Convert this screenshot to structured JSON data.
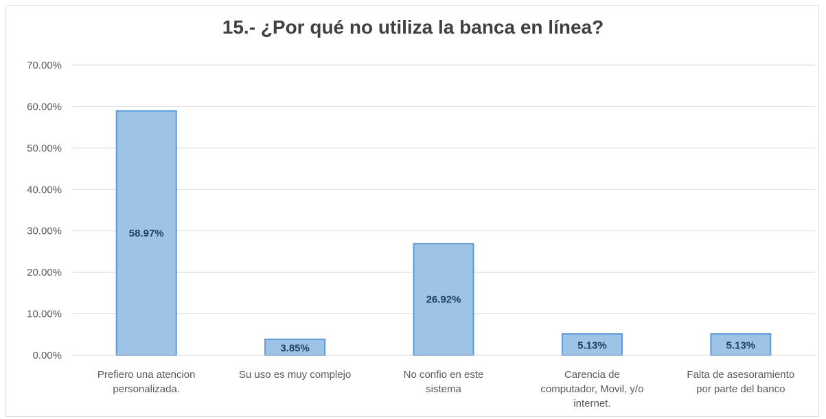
{
  "chart_data": {
    "type": "bar",
    "title": "15.- ¿Por qué no utiliza la banca en línea?",
    "xlabel": "",
    "ylabel": "",
    "categories": [
      [
        "Prefiero una atencion",
        "personalizada."
      ],
      [
        "Su uso es muy complejo"
      ],
      [
        "No confio en este",
        "sistema"
      ],
      [
        "Carencia de",
        "computador, Movil, y/o",
        "internet."
      ],
      [
        "Falta de asesoramiento",
        "por parte del banco"
      ]
    ],
    "values": [
      58.97,
      3.85,
      26.92,
      5.13,
      5.13
    ],
    "data_labels": [
      "58.97%",
      "3.85%",
      "26.92%",
      "5.13%",
      "5.13%"
    ],
    "ylim": [
      0,
      70
    ],
    "yticks": [
      0,
      10,
      20,
      30,
      40,
      50,
      60,
      70
    ],
    "ytick_labels": [
      "0.00%",
      "10.00%",
      "20.00%",
      "30.00%",
      "40.00%",
      "50.00%",
      "60.00%",
      "70.00%"
    ],
    "grid": true,
    "legend": "none",
    "colors": {
      "bar_fill": "#9dc3e6",
      "bar_stroke": "#5b9bd5",
      "gridline": "#d9d9d9",
      "axis_text": "#595959",
      "title_text": "#404040",
      "data_label_text": "#1f3f66"
    }
  }
}
